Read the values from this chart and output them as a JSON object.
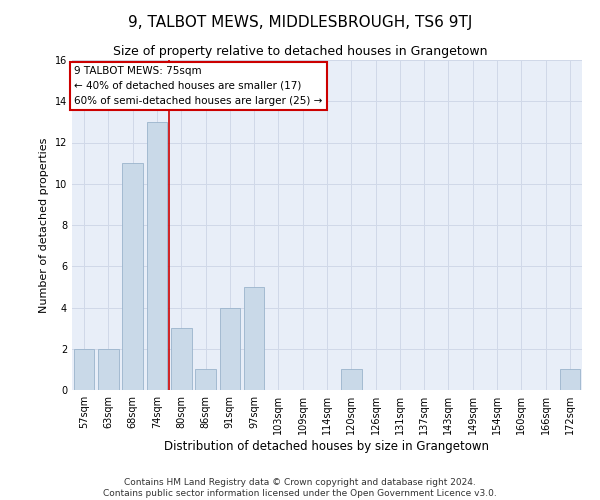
{
  "title": "9, TALBOT MEWS, MIDDLESBROUGH, TS6 9TJ",
  "subtitle": "Size of property relative to detached houses in Grangetown",
  "xlabel": "Distribution of detached houses by size in Grangetown",
  "ylabel": "Number of detached properties",
  "categories": [
    "57sqm",
    "63sqm",
    "68sqm",
    "74sqm",
    "80sqm",
    "86sqm",
    "91sqm",
    "97sqm",
    "103sqm",
    "109sqm",
    "114sqm",
    "120sqm",
    "126sqm",
    "131sqm",
    "137sqm",
    "143sqm",
    "149sqm",
    "154sqm",
    "160sqm",
    "166sqm",
    "172sqm"
  ],
  "values": [
    2,
    2,
    11,
    13,
    3,
    1,
    4,
    5,
    0,
    0,
    0,
    1,
    0,
    0,
    0,
    0,
    0,
    0,
    0,
    0,
    1
  ],
  "bar_color": "#c9d9e8",
  "bar_edge_color": "#9ab4cc",
  "vline_x_index": 3,
  "vline_color": "#cc0000",
  "annotation_text": "9 TALBOT MEWS: 75sqm\n← 40% of detached houses are smaller (17)\n60% of semi-detached houses are larger (25) →",
  "annotation_box_edgecolor": "#cc0000",
  "annotation_box_facecolor": "#ffffff",
  "ylim": [
    0,
    16
  ],
  "yticks": [
    0,
    2,
    4,
    6,
    8,
    10,
    12,
    14,
    16
  ],
  "grid_color": "#d0d8e8",
  "background_color": "#e8eef8",
  "footer_line1": "Contains HM Land Registry data © Crown copyright and database right 2024.",
  "footer_line2": "Contains public sector information licensed under the Open Government Licence v3.0.",
  "title_fontsize": 11,
  "subtitle_fontsize": 9,
  "xlabel_fontsize": 8.5,
  "ylabel_fontsize": 8,
  "annotation_fontsize": 7.5,
  "footer_fontsize": 6.5,
  "tick_fontsize": 7
}
